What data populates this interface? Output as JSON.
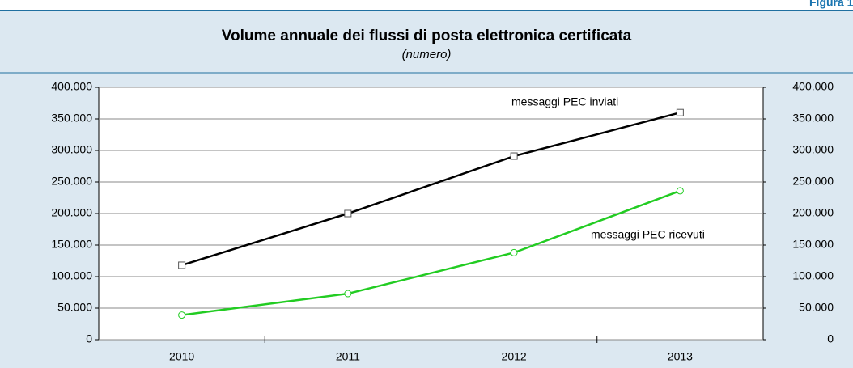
{
  "figure_label": "Figura 1.",
  "chart_data": {
    "type": "line",
    "title": "Volume annuale dei flussi di posta elettronica certificata",
    "subtitle": "(numero)",
    "categories": [
      "2010",
      "2011",
      "2012",
      "2013"
    ],
    "series": [
      {
        "name": "messaggi PEC inviati",
        "color": "#000000",
        "marker": "square",
        "values": [
          118000,
          200000,
          291000,
          360000
        ]
      },
      {
        "name": "messaggi PEC ricevuti",
        "color": "#22cc22",
        "marker": "circle",
        "values": [
          39000,
          73000,
          138000,
          236000
        ]
      }
    ],
    "ylim": [
      0,
      400000
    ],
    "yticks": [
      0,
      {
        "value": 50000,
        "label": "50.000"
      },
      {
        "value": 100000,
        "label": "100.000"
      },
      {
        "value": 150000,
        "label": "150.000"
      },
      {
        "value": 200000,
        "label": "200.000"
      },
      {
        "value": 250000,
        "label": "250.000"
      },
      {
        "value": 300000,
        "label": "300.000"
      },
      {
        "value": 350000,
        "label": "350.000"
      },
      {
        "value": 400000,
        "label": "400.000"
      }
    ],
    "y2lim": [
      0,
      400000
    ],
    "y2ticks": [
      0,
      {
        "value": 50000,
        "label": "50.000"
      },
      {
        "value": 100000,
        "label": "100.000"
      },
      {
        "value": 150000,
        "label": "150.000"
      },
      {
        "value": 200000,
        "label": "200.000"
      },
      {
        "value": 250000,
        "label": "250.000"
      },
      {
        "value": 300000,
        "label": "300.000"
      },
      {
        "value": 350000,
        "label": "350.000"
      },
      {
        "value": 400000,
        "label": "400.000"
      }
    ],
    "grid": true
  }
}
